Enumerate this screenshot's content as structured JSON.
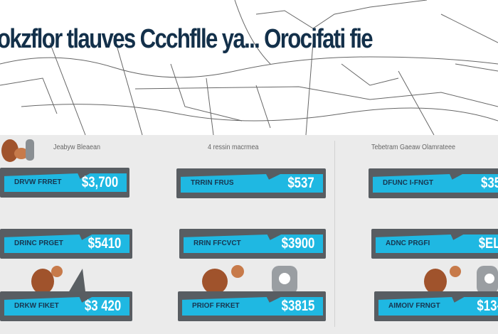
{
  "header": {
    "title": "okzflor tlauves Ccchflle ya... Orocifati fie"
  },
  "columns": [
    {
      "caption": "Jeabyw Bleaean",
      "items": [
        {
          "label": "DRVW FRRET",
          "price": "$3,700"
        },
        {
          "label": "DRINC PRGET",
          "price": "$5410"
        },
        {
          "label": "DRKW FIKET",
          "price": "$3 420"
        }
      ]
    },
    {
      "caption": "4  ressin macrmea",
      "items": [
        {
          "label": "TRRIN FRUS",
          "price": "$537"
        },
        {
          "label": "RRIN FFCVCT",
          "price": "$3900"
        },
        {
          "label": "PRIOF FRKET",
          "price": "$3815"
        }
      ]
    },
    {
      "caption": "Tebetram Gaeaw Olamrateee",
      "items": [
        {
          "label": "DFUNC I-FNGT",
          "price": "$35"
        },
        {
          "label": "ADNC PRGFI",
          "price": "$EL"
        },
        {
          "label": "AIMOIV FRNGT",
          "price": "$13-"
        }
      ]
    }
  ],
  "colors": {
    "accent": "#1fb8e2",
    "banner": "#585d62",
    "title": "#13304a"
  }
}
